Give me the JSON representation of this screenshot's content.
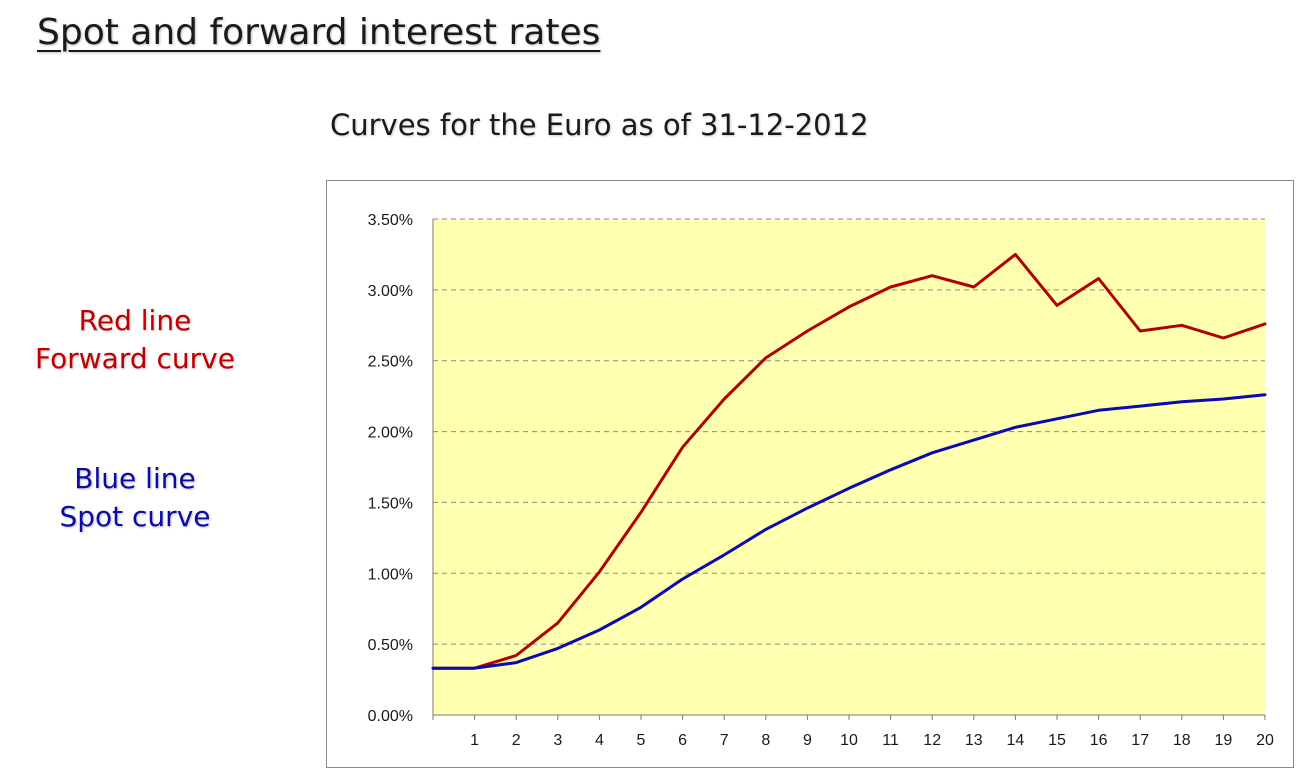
{
  "slide": {
    "title": "Spot and forward interest rates",
    "subtitle": "Curves for the Euro as of 31-12-2012"
  },
  "legend": {
    "forward_line1": "Red line",
    "forward_line2": "Forward curve",
    "spot_line1": "Blue line",
    "spot_line2": "Spot curve"
  },
  "colors": {
    "forward": "#b00000",
    "spot": "#0a0ab0",
    "plot_background": "#ffffb0",
    "grid": "#8a8a8a"
  },
  "chart_data": {
    "type": "line",
    "title": "Curves for the Euro as of 31-12-2012",
    "x": [
      0,
      1,
      2,
      3,
      4,
      5,
      6,
      7,
      8,
      9,
      10,
      11,
      12,
      13,
      14,
      15,
      16,
      17,
      18,
      19,
      20
    ],
    "x_tick_labels": [
      "1",
      "2",
      "3",
      "4",
      "5",
      "6",
      "7",
      "8",
      "9",
      "10",
      "11",
      "12",
      "13",
      "14",
      "15",
      "16",
      "17",
      "18",
      "19",
      "20"
    ],
    "xlim": [
      0,
      20
    ],
    "ylim": [
      0,
      0.035
    ],
    "y_ticks": [
      0,
      0.005,
      0.01,
      0.015,
      0.02,
      0.025,
      0.03,
      0.035
    ],
    "y_tick_labels": [
      "0.00%",
      "0.50%",
      "1.00%",
      "1.50%",
      "2.00%",
      "2.50%",
      "3.00%",
      "3.50%"
    ],
    "grid": "horizontal dashed",
    "series": [
      {
        "name": "Forward curve",
        "color": "#b00000",
        "values": [
          0.0033,
          0.0033,
          0.0042,
          0.0065,
          0.0101,
          0.0143,
          0.0189,
          0.0223,
          0.0252,
          0.0271,
          0.0288,
          0.0302,
          0.031,
          0.0302,
          0.0325,
          0.0289,
          0.0308,
          0.0271,
          0.0275,
          0.0266,
          0.0276
        ]
      },
      {
        "name": "Spot curve",
        "color": "#0a0ab0",
        "values": [
          0.0033,
          0.0033,
          0.0037,
          0.0047,
          0.006,
          0.0076,
          0.0096,
          0.0113,
          0.0131,
          0.0146,
          0.016,
          0.0173,
          0.0185,
          0.0194,
          0.0203,
          0.0209,
          0.0215,
          0.0218,
          0.0221,
          0.0223,
          0.0226
        ]
      }
    ]
  }
}
